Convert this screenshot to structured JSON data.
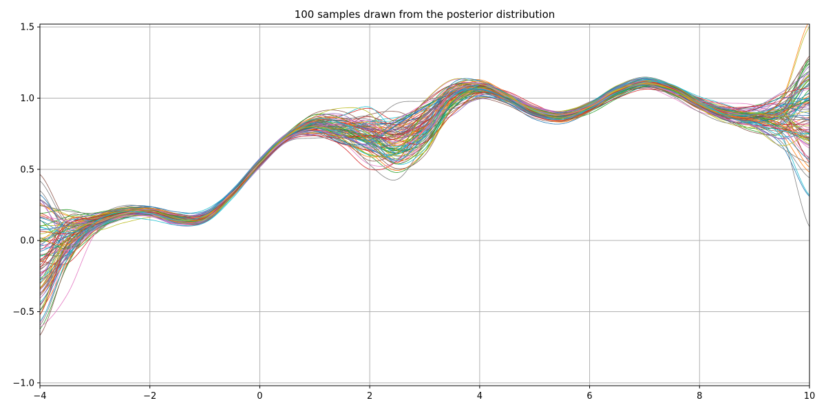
{
  "chart_data": {
    "type": "line",
    "title": "100 samples drawn from the posterior distribution",
    "xlabel": "",
    "ylabel": "",
    "xlim": [
      -4,
      10
    ],
    "ylim": [
      -1.02,
      1.52
    ],
    "xticks": [
      -4,
      -2,
      0,
      2,
      4,
      6,
      8,
      10
    ],
    "xtick_labels": [
      "−4",
      "−2",
      "0",
      "2",
      "4",
      "6",
      "8",
      "10"
    ],
    "yticks": [
      -1.0,
      -0.5,
      0.0,
      0.5,
      1.0,
      1.5
    ],
    "ytick_labels": [
      "−1.0",
      "−0.5",
      "0.0",
      "0.5",
      "1.0",
      "1.5"
    ],
    "grid": true,
    "legend": "none",
    "series_count": 100,
    "x": [
      -4.0,
      -3.5,
      -3.0,
      -2.5,
      -2.0,
      -1.5,
      -1.0,
      -0.5,
      0.0,
      0.5,
      1.0,
      1.5,
      2.0,
      2.5,
      3.0,
      3.5,
      4.0,
      4.5,
      5.0,
      5.5,
      6.0,
      6.5,
      7.0,
      7.5,
      8.0,
      8.5,
      9.0,
      9.5,
      10.0
    ],
    "mean": [
      -0.15,
      0.0,
      0.12,
      0.19,
      0.2,
      0.15,
      0.16,
      0.33,
      0.55,
      0.73,
      0.8,
      0.77,
      0.72,
      0.68,
      0.8,
      1.0,
      1.07,
      1.01,
      0.91,
      0.88,
      0.94,
      1.05,
      1.11,
      1.06,
      0.96,
      0.89,
      0.86,
      0.86,
      0.9
    ],
    "std": [
      0.22,
      0.11,
      0.04,
      0.02,
      0.02,
      0.02,
      0.02,
      0.015,
      0.012,
      0.015,
      0.04,
      0.06,
      0.1,
      0.12,
      0.1,
      0.06,
      0.03,
      0.02,
      0.02,
      0.02,
      0.02,
      0.02,
      0.02,
      0.02,
      0.02,
      0.03,
      0.05,
      0.1,
      0.22
    ],
    "colors": [
      "#1f77b4",
      "#ff7f0e",
      "#2ca02c",
      "#d62728",
      "#9467bd",
      "#8c564b",
      "#e377c2",
      "#7f7f7f",
      "#bcbd22",
      "#17becf"
    ]
  }
}
